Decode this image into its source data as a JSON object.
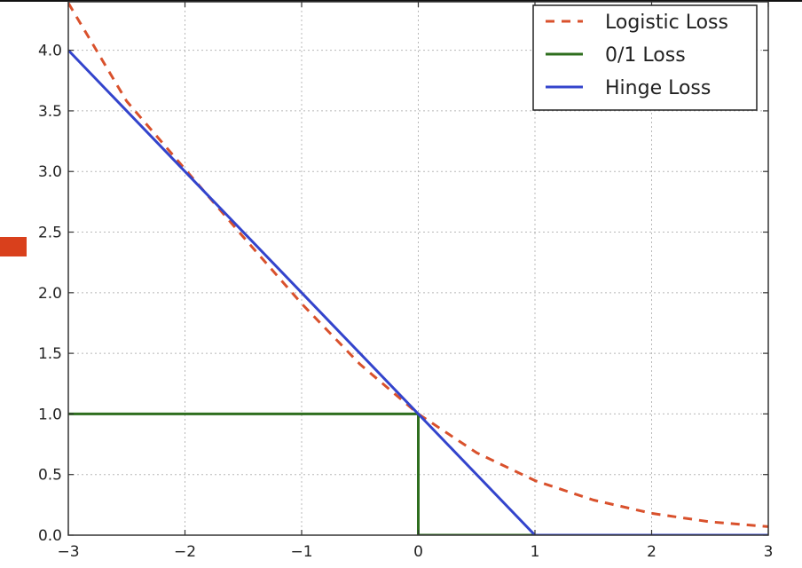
{
  "chart_data": {
    "type": "line",
    "title": "",
    "xlabel": "",
    "ylabel": "",
    "xlim": [
      -3,
      3
    ],
    "ylim": [
      0,
      4.4
    ],
    "xticks": [
      -3,
      -2,
      -1,
      0,
      1,
      2,
      3
    ],
    "xtick_labels": [
      "−3",
      "−2",
      "−1",
      "0",
      "1",
      "2",
      "3"
    ],
    "yticks": [
      0,
      0.5,
      1,
      1.5,
      2,
      2.5,
      3,
      3.5,
      4
    ],
    "ytick_labels": [
      "0.0",
      "0.5",
      "1.0",
      "1.5",
      "2.0",
      "2.5",
      "3.0",
      "3.5",
      "4.0"
    ],
    "grid": true,
    "legend_position": "top-right",
    "series": [
      {
        "name": "Logistic Loss",
        "style": "dashed",
        "color": "#d9512c",
        "x": [
          -3,
          -2.5,
          -2,
          -1.5,
          -1,
          -0.5,
          0,
          0.5,
          1,
          1.5,
          2,
          2.5,
          3
        ],
        "y": [
          4.39,
          3.58,
          3.02,
          2.46,
          1.91,
          1.41,
          1.0,
          0.68,
          0.45,
          0.29,
          0.18,
          0.11,
          0.07
        ]
      },
      {
        "name": "0/1 Loss",
        "style": "solid",
        "color": "#2e6e1e",
        "x": [
          -3,
          0,
          0,
          3
        ],
        "y": [
          1,
          1,
          0,
          0
        ]
      },
      {
        "name": "Hinge Loss",
        "style": "solid",
        "color": "#3344cc",
        "x": [
          -3,
          1,
          3
        ],
        "y": [
          4,
          0,
          0
        ]
      }
    ]
  },
  "decor": {
    "marker_color": "#d9401c"
  }
}
